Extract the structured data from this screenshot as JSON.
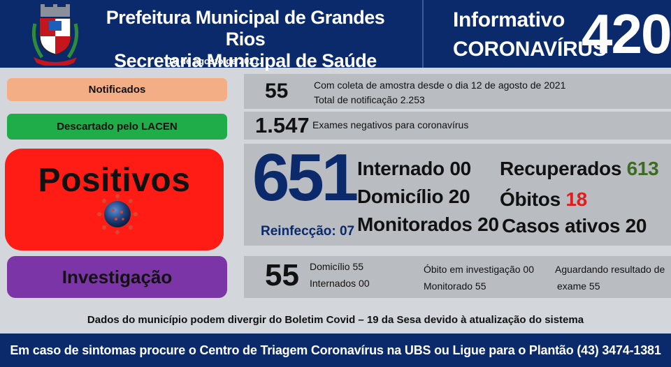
{
  "header": {
    "title_line1": "Prefeitura Municipal de Grandes Rios",
    "title_line2": "Secretaria Municipal de Saúde",
    "date": "16 de agosto de 2021.",
    "informativo": "Informativo",
    "coronavirus": "CORONAVÍRUS",
    "number": "420"
  },
  "notificados": {
    "label": "Notificados",
    "value": "55",
    "line1": "Com coleta de amostra desde o dia 12 de agosto de 2021",
    "line2": "Total de notificação 2.253"
  },
  "descartado": {
    "label": "Descartado pelo LACEN",
    "value": "1.547",
    "text": "Exames negativos para coronavírus"
  },
  "positivos": {
    "label": "Positivos",
    "value": "651",
    "reinfeccao": "Reinfecção: 07",
    "internado": "Internado 00",
    "domicilio": "Domicílio 20",
    "monitorados": "Monitorados 20",
    "recuperados_label": "Recuperados",
    "recuperados_value": "613",
    "obitos_label": "Óbitos",
    "obitos_value": "18",
    "casos_ativos": "Casos ativos 20"
  },
  "investigacao": {
    "label": "Investigação",
    "value": "55",
    "domicilio": "Domicílio 55",
    "internados": "Internados 00",
    "obito_inv": "Óbito em investigação 00",
    "monitorado": "Monitorado 55",
    "aguardando_line1": "Aguardando resultado de",
    "aguardando_line2": "exame 55"
  },
  "note": "Dados do município podem divergir do Boletim Covid – 19 da Sesa devido à atualização do sistema",
  "footer": "Em caso de sintomas procure o Centro de Triagem Coronavírus na UBS ou Ligue para o Plantão (43) 3474-1381",
  "colors": {
    "header_bg": "#0b2a6b",
    "notificados": "#f4ae85",
    "descartado": "#1fad4a",
    "positivos": "#ff1c14",
    "investigacao": "#7c35a6",
    "big_number": "#0b2a6b",
    "recuperados": "#3d6b24",
    "obitos": "#e11d1d"
  },
  "icons": {
    "crest": "municipal-coat-of-arms",
    "virus": "coronavirus-icon"
  }
}
